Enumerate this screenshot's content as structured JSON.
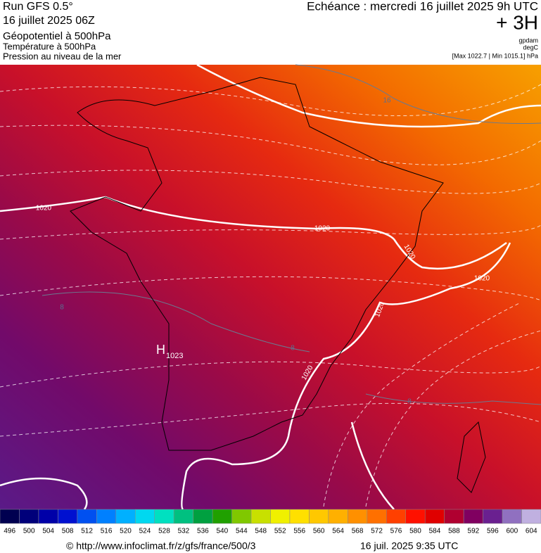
{
  "header": {
    "left": [
      "Run GFS 0.5°",
      "16 juillet 2025 06Z",
      "Géopotentiel à 500hPa",
      "Température à 500hPa",
      "Pression au niveau de la mer"
    ],
    "right": [
      "Echéance : mercredi 16 juillet 2025 9h UTC",
      "+ 3H",
      "gpdam",
      "degC",
      "[Max 1022.7 | Min 1015.1] hPa"
    ]
  },
  "map": {
    "isobar_labels": [
      "1020",
      "1020",
      "1020",
      "1020",
      "1020",
      "1020"
    ],
    "temperature_labels": [
      "16",
      "8",
      "8",
      "8"
    ],
    "high": {
      "symbol": "H",
      "value": "1023"
    }
  },
  "colorbar": {
    "ticks": [
      496,
      500,
      504,
      508,
      512,
      516,
      520,
      524,
      528,
      532,
      536,
      540,
      544,
      548,
      552,
      556,
      560,
      564,
      568,
      572,
      576,
      580,
      584,
      588,
      592,
      596,
      600,
      604
    ],
    "colors": [
      "#000050",
      "#00007a",
      "#0000a8",
      "#0010d0",
      "#0050f0",
      "#0080ff",
      "#00b0ff",
      "#00d8f0",
      "#00e0c0",
      "#00c080",
      "#00a040",
      "#20a000",
      "#80c800",
      "#c8e000",
      "#f0f000",
      "#ffe000",
      "#ffc800",
      "#ffb000",
      "#ff9000",
      "#ff7000",
      "#ff4000",
      "#ff1000",
      "#e00000",
      "#b00030",
      "#800060",
      "#6a2090",
      "#9070c0",
      "#c0b0e0"
    ]
  },
  "footer": {
    "source": "© http://www.infoclimat.fr/z/gfs/france/500/3",
    "date": "16 juil. 2025  9:35 UTC"
  }
}
